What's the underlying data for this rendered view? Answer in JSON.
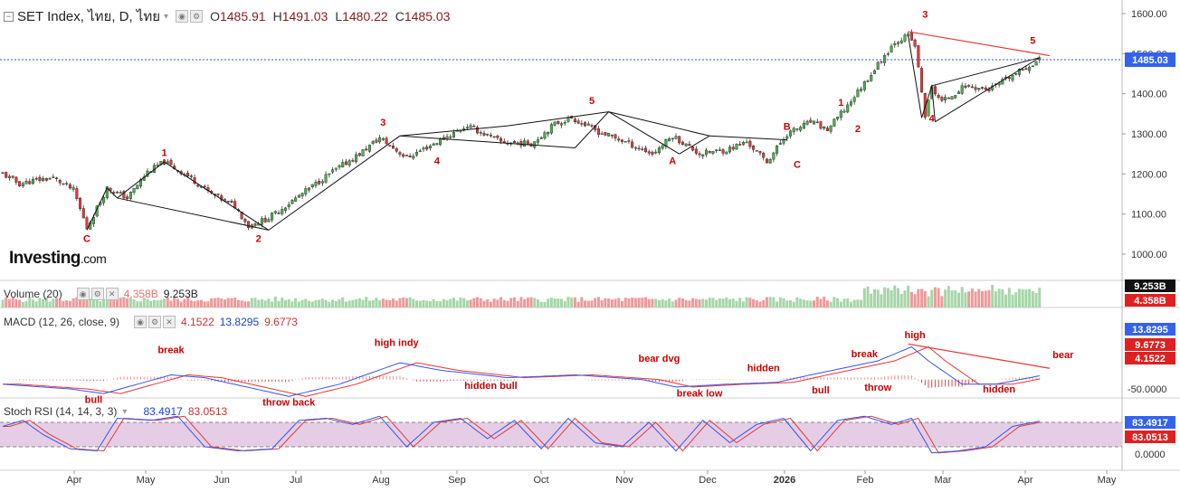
{
  "header": {
    "symbol": "SET Index, ไทย, D, ไทย",
    "open_label": "O",
    "open": "1485.91",
    "high_label": "H",
    "high": "1491.03",
    "low_label": "L",
    "low": "1480.22",
    "close_label": "C",
    "close": "1485.03"
  },
  "logo": {
    "main": "Investing",
    "suffix": ".com"
  },
  "volume": {
    "label": "Volume (20)",
    "value1": "4.358B",
    "value2": "9.253B"
  },
  "macd": {
    "label": "MACD (12, 26, close, 9)",
    "value1": "4.1522",
    "value2": "13.8295",
    "value3": "9.6773"
  },
  "stoch": {
    "label": "Stoch RSI (14, 14, 3, 3)",
    "value1": "83.4917",
    "value2": "83.0513"
  },
  "colors": {
    "up": "#4caf50",
    "down": "#e53935",
    "macd": "#3355ee",
    "signal": "#ee3333",
    "rsi_band": "#e6cde6",
    "axis_tag": "#3362ee",
    "red_tag": "#e02020"
  },
  "chart_data": {
    "type": "candlestick",
    "price_axis": {
      "ticks": [
        "1600.00",
        "1500.00",
        "1400.00",
        "1300.00",
        "1200.00",
        "1100.00",
        "1000.00"
      ],
      "range": [
        960,
        1620
      ],
      "last_price": "1485.03"
    },
    "time_axis": {
      "labels": [
        "Apr",
        "May",
        "Jun",
        "Jul",
        "Aug",
        "Sep",
        "Oct",
        "Nov",
        "Dec",
        "2026",
        "Feb",
        "Mar",
        "Apr",
        "May"
      ]
    },
    "price_path": [
      {
        "d": 0,
        "p": 1200
      },
      {
        "d": 5,
        "p": 1175
      },
      {
        "d": 10,
        "p": 1185
      },
      {
        "d": 15,
        "p": 1190
      },
      {
        "d": 21,
        "p": 1160
      },
      {
        "d": 25,
        "p": 1065
      },
      {
        "d": 31,
        "p": 1165
      },
      {
        "d": 37,
        "p": 1140
      },
      {
        "d": 43,
        "p": 1205
      },
      {
        "d": 48,
        "p": 1230
      },
      {
        "d": 55,
        "p": 1195
      },
      {
        "d": 62,
        "p": 1150
      },
      {
        "d": 69,
        "p": 1120
      },
      {
        "d": 73,
        "p": 1070
      },
      {
        "d": 79,
        "p": 1090
      },
      {
        "d": 88,
        "p": 1145
      },
      {
        "d": 97,
        "p": 1200
      },
      {
        "d": 106,
        "p": 1250
      },
      {
        "d": 112,
        "p": 1290
      },
      {
        "d": 120,
        "p": 1240
      },
      {
        "d": 129,
        "p": 1280
      },
      {
        "d": 138,
        "p": 1320
      },
      {
        "d": 148,
        "p": 1280
      },
      {
        "d": 157,
        "p": 1275
      },
      {
        "d": 164,
        "p": 1325
      },
      {
        "d": 169,
        "p": 1340
      },
      {
        "d": 177,
        "p": 1305
      },
      {
        "d": 185,
        "p": 1280
      },
      {
        "d": 193,
        "p": 1250
      },
      {
        "d": 199,
        "p": 1295
      },
      {
        "d": 207,
        "p": 1250
      },
      {
        "d": 215,
        "p": 1260
      },
      {
        "d": 221,
        "p": 1280
      },
      {
        "d": 227,
        "p": 1230
      },
      {
        "d": 233,
        "p": 1300
      },
      {
        "d": 240,
        "p": 1330
      },
      {
        "d": 245,
        "p": 1310
      },
      {
        "d": 250,
        "p": 1360
      },
      {
        "d": 258,
        "p": 1450
      },
      {
        "d": 265,
        "p": 1530
      },
      {
        "d": 269,
        "p": 1545
      },
      {
        "d": 271,
        "p": 1520
      },
      {
        "d": 274,
        "p": 1345
      },
      {
        "d": 276,
        "p": 1415
      },
      {
        "d": 279,
        "p": 1380
      },
      {
        "d": 286,
        "p": 1420
      },
      {
        "d": 293,
        "p": 1410
      },
      {
        "d": 300,
        "p": 1445
      },
      {
        "d": 305,
        "p": 1470
      },
      {
        "d": 308,
        "p": 1485
      }
    ],
    "wave_annotations": [
      {
        "label": "C",
        "d": 25,
        "p": 1030
      },
      {
        "label": "1",
        "d": 48,
        "p": 1245
      },
      {
        "label": "2",
        "d": 76,
        "p": 1030
      },
      {
        "label": "3",
        "d": 113,
        "p": 1320
      },
      {
        "label": "4",
        "d": 129,
        "p": 1225
      },
      {
        "label": "5",
        "d": 175,
        "p": 1375
      },
      {
        "label": "A",
        "d": 199,
        "p": 1225
      },
      {
        "label": "B",
        "d": 233,
        "p": 1310
      },
      {
        "label": "C",
        "d": 236,
        "p": 1215
      },
      {
        "label": "1",
        "d": 249,
        "p": 1370
      },
      {
        "label": "2",
        "d": 254,
        "p": 1305
      },
      {
        "label": "3",
        "d": 274,
        "p": 1590
      },
      {
        "label": "4",
        "d": 276,
        "p": 1330
      },
      {
        "label": "5",
        "d": 306,
        "p": 1525
      }
    ],
    "wave_lines": [
      {
        "from": {
          "d": 25,
          "p": 1060
        },
        "to": {
          "d": 31,
          "p": 1165
        }
      },
      {
        "from": {
          "d": 31,
          "p": 1165
        },
        "to": {
          "d": 34,
          "p": 1140
        }
      },
      {
        "from": {
          "d": 34,
          "p": 1140
        },
        "to": {
          "d": 48,
          "p": 1230
        }
      },
      {
        "from": {
          "d": 48,
          "p": 1230
        },
        "to": {
          "d": 79,
          "p": 1060
        }
      },
      {
        "from": {
          "d": 34,
          "p": 1140
        },
        "to": {
          "d": 79,
          "p": 1060
        }
      },
      {
        "from": {
          "d": 79,
          "p": 1060
        },
        "to": {
          "d": 118,
          "p": 1295
        }
      },
      {
        "from": {
          "d": 118,
          "p": 1295
        },
        "to": {
          "d": 150,
          "p": 1320
        }
      },
      {
        "from": {
          "d": 150,
          "p": 1320
        },
        "to": {
          "d": 180,
          "p": 1355
        }
      },
      {
        "from": {
          "d": 180,
          "p": 1355
        },
        "to": {
          "d": 210,
          "p": 1295
        }
      },
      {
        "from": {
          "d": 210,
          "p": 1295
        },
        "to": {
          "d": 233,
          "p": 1285
        }
      },
      {
        "from": {
          "d": 118,
          "p": 1295
        },
        "to": {
          "d": 170,
          "p": 1265
        }
      },
      {
        "from": {
          "d": 170,
          "p": 1265
        },
        "to": {
          "d": 180,
          "p": 1355
        }
      },
      {
        "from": {
          "d": 180,
          "p": 1355
        },
        "to": {
          "d": 201,
          "p": 1250
        }
      },
      {
        "from": {
          "d": 201,
          "p": 1250
        },
        "to": {
          "d": 210,
          "p": 1295
        }
      },
      {
        "from": {
          "d": 269,
          "p": 1545
        },
        "to": {
          "d": 273,
          "p": 1340
        }
      },
      {
        "from": {
          "d": 273,
          "p": 1340
        },
        "to": {
          "d": 276,
          "p": 1420
        }
      },
      {
        "from": {
          "d": 276,
          "p": 1420
        },
        "to": {
          "d": 277,
          "p": 1330
        }
      },
      {
        "from": {
          "d": 277,
          "p": 1330
        },
        "to": {
          "d": 308,
          "p": 1490
        }
      },
      {
        "from": {
          "d": 276,
          "p": 1420
        },
        "to": {
          "d": 308,
          "p": 1490
        }
      }
    ],
    "trend_line": {
      "from": {
        "d": 269,
        "p": 1555
      },
      "to": {
        "d": 311,
        "p": 1495
      }
    },
    "volume_axis": {
      "tags": [
        "9.253B",
        "4.358B"
      ]
    },
    "macd_axis": {
      "tags": [
        "13.8295",
        "9.6773",
        "4.1522"
      ],
      "ticks": [
        "-50.0000"
      ],
      "range": [
        -60,
        50
      ]
    },
    "macd_path": [
      {
        "d": 0,
        "p": -5
      },
      {
        "d": 20,
        "p": -10
      },
      {
        "d": 30,
        "p": -15
      },
      {
        "d": 50,
        "p": 5
      },
      {
        "d": 60,
        "p": 2
      },
      {
        "d": 75,
        "p": -10
      },
      {
        "d": 85,
        "p": -18
      },
      {
        "d": 100,
        "p": -5
      },
      {
        "d": 118,
        "p": 18
      },
      {
        "d": 130,
        "p": 10
      },
      {
        "d": 150,
        "p": 2
      },
      {
        "d": 170,
        "p": 5
      },
      {
        "d": 190,
        "p": 0
      },
      {
        "d": 200,
        "p": -8
      },
      {
        "d": 215,
        "p": -5
      },
      {
        "d": 230,
        "p": -3
      },
      {
        "d": 240,
        "p": 5
      },
      {
        "d": 260,
        "p": 20
      },
      {
        "d": 270,
        "p": 35
      },
      {
        "d": 275,
        "p": 20
      },
      {
        "d": 285,
        "p": -5
      },
      {
        "d": 295,
        "p": -5
      },
      {
        "d": 308,
        "p": 4
      }
    ],
    "macd_annotations": [
      {
        "label": "bull",
        "d": 27,
        "p": -25
      },
      {
        "label": "break",
        "d": 50,
        "p": 28
      },
      {
        "label": "throw back",
        "d": 85,
        "p": -28
      },
      {
        "label": "high indy",
        "d": 117,
        "p": 36
      },
      {
        "label": "hidden bull",
        "d": 145,
        "p": -10
      },
      {
        "label": "bear dvg",
        "d": 195,
        "p": 19
      },
      {
        "label": "break low",
        "d": 207,
        "p": -18
      },
      {
        "label": "hidden",
        "d": 226,
        "p": 9
      },
      {
        "label": "bull",
        "d": 243,
        "p": -15
      },
      {
        "label": "break",
        "d": 256,
        "p": 24
      },
      {
        "label": "throw",
        "d": 260,
        "p": -12
      },
      {
        "label": "high",
        "d": 271,
        "p": 44
      },
      {
        "label": "hidden",
        "d": 296,
        "p": -14
      },
      {
        "label": "bear",
        "d": 315,
        "p": 23
      }
    ],
    "stoch_axis": {
      "tags": [
        "83.4917",
        "83.0513"
      ],
      "ticks": [
        "0.0000"
      ],
      "overbought": 80,
      "oversold": 20,
      "range": [
        -10,
        110
      ]
    },
    "stoch_path": [
      {
        "d": 0,
        "p": 70
      },
      {
        "d": 6,
        "p": 85
      },
      {
        "d": 12,
        "p": 50
      },
      {
        "d": 20,
        "p": 15
      },
      {
        "d": 28,
        "p": 10
      },
      {
        "d": 34,
        "p": 90
      },
      {
        "d": 44,
        "p": 85
      },
      {
        "d": 52,
        "p": 95
      },
      {
        "d": 60,
        "p": 20
      },
      {
        "d": 70,
        "p": 10
      },
      {
        "d": 80,
        "p": 15
      },
      {
        "d": 88,
        "p": 85
      },
      {
        "d": 96,
        "p": 90
      },
      {
        "d": 104,
        "p": 75
      },
      {
        "d": 112,
        "p": 95
      },
      {
        "d": 120,
        "p": 20
      },
      {
        "d": 128,
        "p": 80
      },
      {
        "d": 136,
        "p": 90
      },
      {
        "d": 144,
        "p": 40
      },
      {
        "d": 152,
        "p": 85
      },
      {
        "d": 160,
        "p": 15
      },
      {
        "d": 168,
        "p": 90
      },
      {
        "d": 176,
        "p": 30
      },
      {
        "d": 184,
        "p": 20
      },
      {
        "d": 192,
        "p": 80
      },
      {
        "d": 200,
        "p": 10
      },
      {
        "d": 208,
        "p": 85
      },
      {
        "d": 216,
        "p": 30
      },
      {
        "d": 224,
        "p": 75
      },
      {
        "d": 232,
        "p": 90
      },
      {
        "d": 240,
        "p": 10
      },
      {
        "d": 248,
        "p": 85
      },
      {
        "d": 256,
        "p": 95
      },
      {
        "d": 264,
        "p": 75
      },
      {
        "d": 270,
        "p": 90
      },
      {
        "d": 276,
        "p": 5
      },
      {
        "d": 284,
        "p": 10
      },
      {
        "d": 292,
        "p": 20
      },
      {
        "d": 300,
        "p": 70
      },
      {
        "d": 308,
        "p": 83
      }
    ]
  }
}
